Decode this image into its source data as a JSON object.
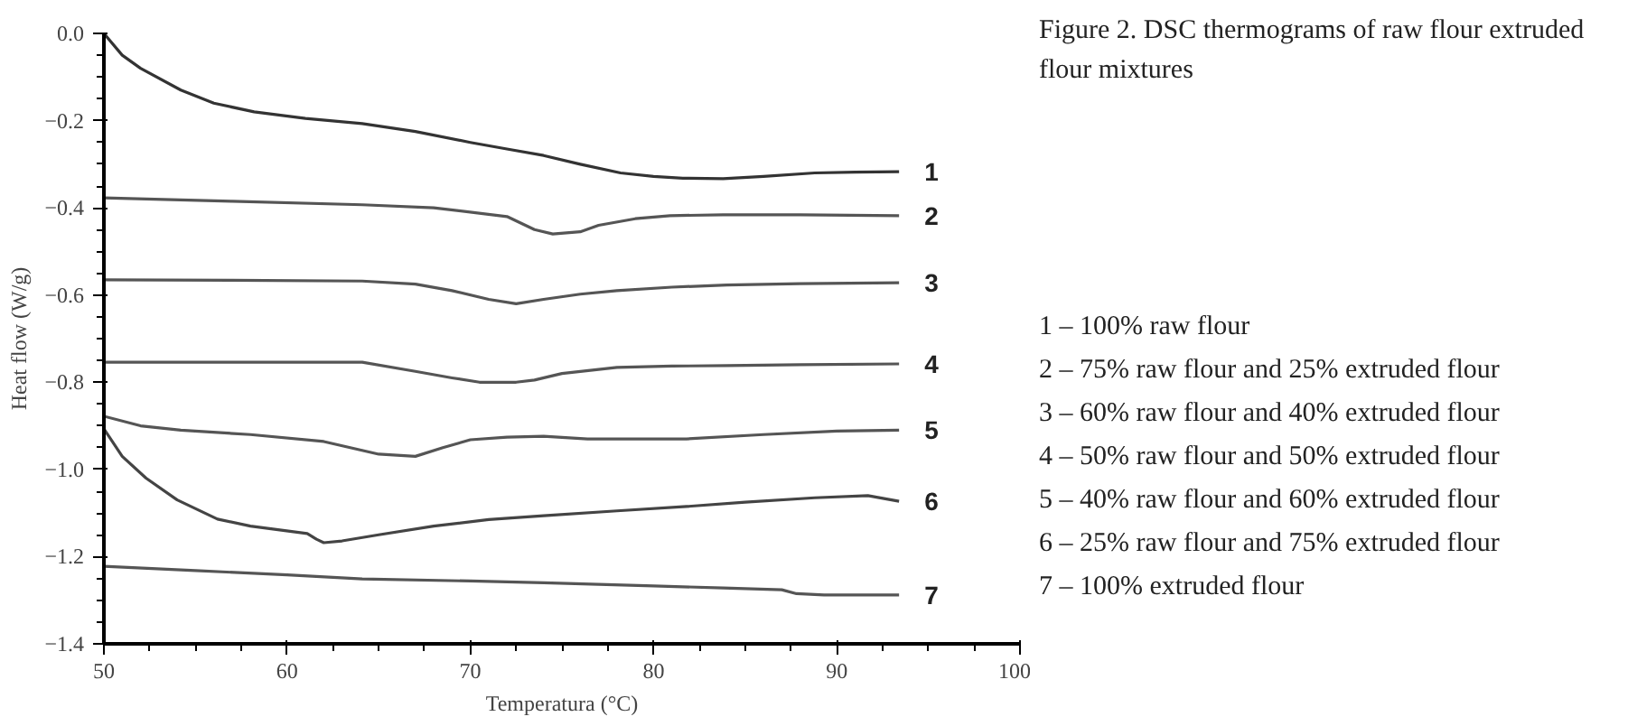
{
  "chart_data": {
    "type": "line",
    "title": "Figure 2. DSC thermograms of raw flour extruded flour mixtures",
    "xlabel": "Temperatura (°C)",
    "ylabel": "Heat flow (W/g)",
    "xlim": [
      50,
      100
    ],
    "ylim": [
      -1.4,
      0.0
    ],
    "xticks": [
      50,
      60,
      70,
      80,
      90,
      100
    ],
    "yticks": [
      {
        "value": -1.4,
        "label": "−1.4"
      },
      {
        "value": -1.2,
        "label": "−1.2"
      },
      {
        "value": -1.0,
        "label": "−1.0"
      },
      {
        "value": -0.8,
        "label": "−0.8"
      },
      {
        "value": -0.6,
        "label": "−0.6"
      },
      {
        "value": -0.4,
        "label": "−0.4"
      },
      {
        "value": -0.2,
        "label": "−0.2"
      },
      {
        "value": 0.0,
        "label": "0.0"
      }
    ],
    "grid": false,
    "marker": "none",
    "line_style": "solid",
    "annotations": [
      "1 – 100% raw flour",
      "2 – 75% raw flour and 25% extruded flour",
      "3 – 60% raw flour and 40% extruded flour",
      "4 – 50% raw flour and 50% extruded flour",
      "5 – 40% raw flour and 60% extruded flour",
      "6 – 25% raw flour and 75% extruded flour",
      "7 – 100% extruded flour"
    ],
    "series": [
      {
        "name": "1",
        "color": "#333333",
        "x": [
          50,
          51,
          52,
          54.2,
          56,
          58.2,
          61,
          64.1,
          67,
          70,
          72,
          74,
          76,
          78.2,
          80,
          81.6,
          83.8,
          86,
          88.8,
          91,
          93.4
        ],
        "values": [
          0,
          -0.05,
          -0.08,
          -0.13,
          -0.16,
          -0.18,
          -0.195,
          -0.207,
          -0.225,
          -0.25,
          -0.265,
          -0.28,
          -0.3,
          -0.32,
          -0.328,
          -0.332,
          -0.333,
          -0.328,
          -0.32,
          -0.318,
          -0.317
        ]
      },
      {
        "name": "2",
        "color": "#555555",
        "x": [
          50,
          57,
          64.1,
          68,
          72,
          73.5,
          74.5,
          76,
          77,
          79,
          80.9,
          83.8,
          88,
          93.4
        ],
        "values": [
          -0.377,
          -0.385,
          -0.393,
          -0.4,
          -0.42,
          -0.45,
          -0.46,
          -0.455,
          -0.44,
          -0.425,
          -0.418,
          -0.416,
          -0.416,
          -0.418
        ]
      },
      {
        "name": "3",
        "color": "#555555",
        "x": [
          50,
          57,
          64.1,
          67,
          69,
          71,
          72.5,
          74,
          76,
          78,
          81,
          84,
          88,
          93.4
        ],
        "values": [
          -0.565,
          -0.566,
          -0.568,
          -0.575,
          -0.59,
          -0.61,
          -0.62,
          -0.61,
          -0.598,
          -0.59,
          -0.582,
          -0.577,
          -0.574,
          -0.572
        ]
      },
      {
        "name": "4",
        "color": "#555555",
        "x": [
          50,
          57,
          64.1,
          67,
          69,
          70.5,
          72.5,
          73.5,
          75,
          78,
          81,
          84,
          88,
          93.4
        ],
        "values": [
          -0.754,
          -0.754,
          -0.754,
          -0.775,
          -0.79,
          -0.8,
          -0.8,
          -0.795,
          -0.78,
          -0.766,
          -0.763,
          -0.762,
          -0.76,
          -0.758
        ]
      },
      {
        "name": "5",
        "color": "#555555",
        "x": [
          50,
          52,
          54.2,
          58,
          62,
          65,
          67,
          68.5,
          70,
          72,
          74,
          76.4,
          81.8,
          86,
          90,
          93.4
        ],
        "values": [
          -0.878,
          -0.9,
          -0.91,
          -0.92,
          -0.936,
          -0.965,
          -0.97,
          -0.95,
          -0.932,
          -0.926,
          -0.924,
          -0.93,
          -0.93,
          -0.92,
          -0.912,
          -0.91
        ]
      },
      {
        "name": "6",
        "color": "#444444",
        "x": [
          50,
          51,
          52.3,
          54,
          56.2,
          58,
          61.1,
          61.6,
          62,
          63,
          65,
          68,
          71,
          74,
          78,
          81.8,
          85,
          88.8,
          91.7,
          93.4
        ],
        "values": [
          -0.907,
          -0.97,
          -1.02,
          -1.07,
          -1.114,
          -1.13,
          -1.147,
          -1.16,
          -1.168,
          -1.164,
          -1.15,
          -1.13,
          -1.115,
          -1.106,
          -1.095,
          -1.085,
          -1.075,
          -1.065,
          -1.06,
          -1.073
        ]
      },
      {
        "name": "7",
        "color": "#555555",
        "x": [
          50,
          55,
          60,
          64.1,
          70,
          74,
          80,
          83.8,
          87,
          87.8,
          89.3,
          91,
          93.4
        ],
        "values": [
          -1.222,
          -1.232,
          -1.242,
          -1.251,
          -1.256,
          -1.26,
          -1.267,
          -1.272,
          -1.276,
          -1.285,
          -1.288,
          -1.288,
          -1.288
        ]
      }
    ]
  }
}
